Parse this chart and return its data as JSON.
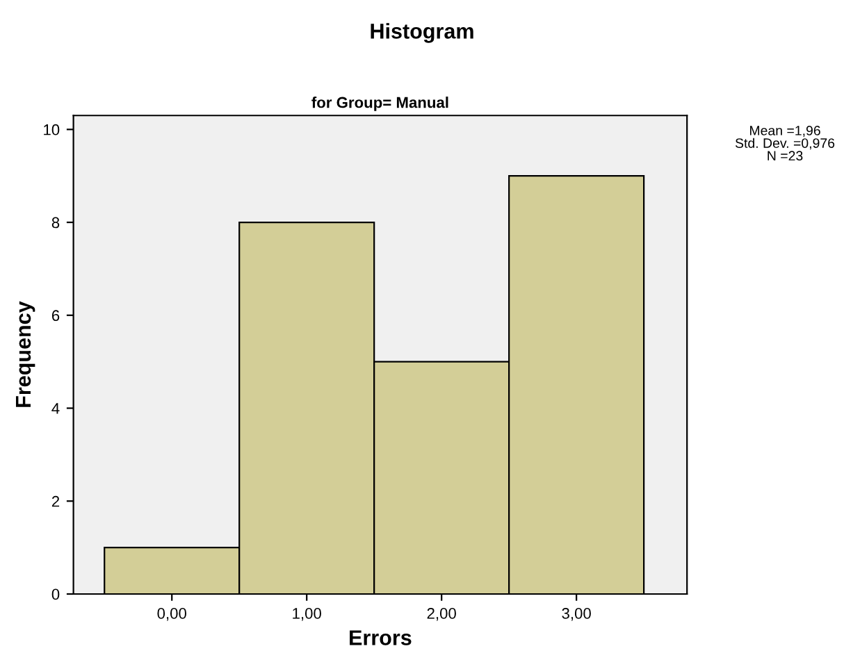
{
  "chart_data": {
    "type": "histogram",
    "title": "Histogram",
    "subtitle": "for Group= Manual",
    "xlabel": "Errors",
    "ylabel": "Frequency",
    "bins": [
      -0.5,
      0.5,
      1.5,
      2.5,
      3.5
    ],
    "values": [
      1,
      8,
      5,
      9
    ],
    "color": "#d3ce97",
    "xlim": [
      -0.73,
      3.82
    ],
    "xticks": [
      {
        "value": 0,
        "label": "0,00"
      },
      {
        "value": 1,
        "label": "1,00"
      },
      {
        "value": 2,
        "label": "2,00"
      },
      {
        "value": 3,
        "label": "3,00"
      }
    ],
    "ylim": [
      0,
      10.3
    ],
    "yticks": [
      0,
      2,
      4,
      6,
      8,
      10
    ],
    "annotations": [
      "Mean =1,96\nStd. Dev. =0,976\nN =23"
    ],
    "grid": false
  }
}
